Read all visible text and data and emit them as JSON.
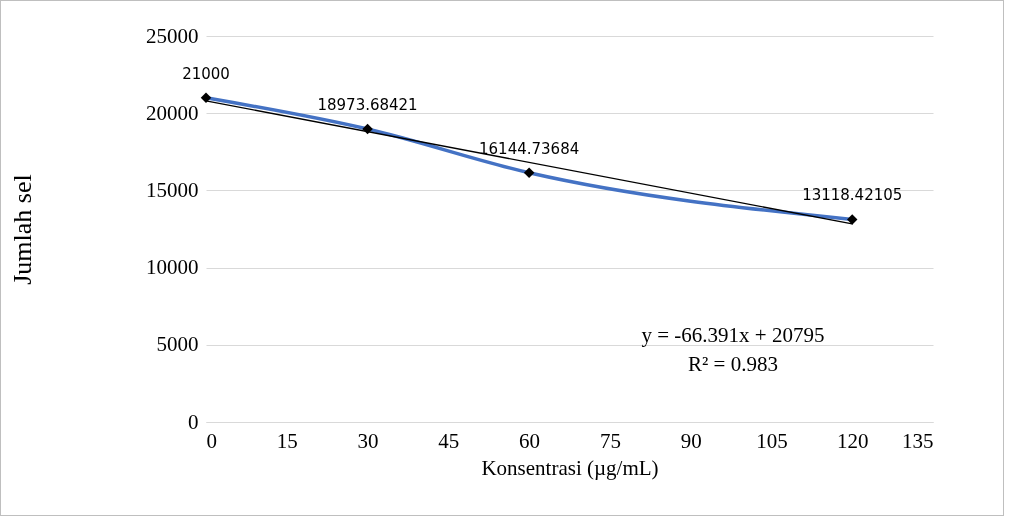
{
  "chart_data": {
    "type": "line",
    "xlabel": "Konsentrasi (µg/mL)",
    "ylabel": "Jumlah sel",
    "xlim": [
      0,
      135
    ],
    "xticks": [
      0,
      15,
      30,
      45,
      60,
      75,
      90,
      105,
      120,
      135
    ],
    "ylim": [
      0,
      25000
    ],
    "yticks": [
      0,
      5000,
      10000,
      15000,
      20000,
      25000
    ],
    "grid": "y",
    "series": [
      {
        "x": [
          0,
          30,
          60,
          120
        ],
        "values": [
          21000,
          18973.68421,
          16144.73684,
          13118.42105
        ],
        "color": "#4472c4",
        "marker": "diamond",
        "value_labels": [
          "21000",
          "18973.68421",
          "16144.73684",
          "13118.42105"
        ]
      },
      {
        "type": "line",
        "x": [
          0,
          120
        ],
        "values": [
          20800,
          12830
        ],
        "color": "#000000",
        "marker": "none"
      }
    ],
    "annotations": [
      "y = -66.391x + 20795",
      "R² = 0.983"
    ]
  }
}
